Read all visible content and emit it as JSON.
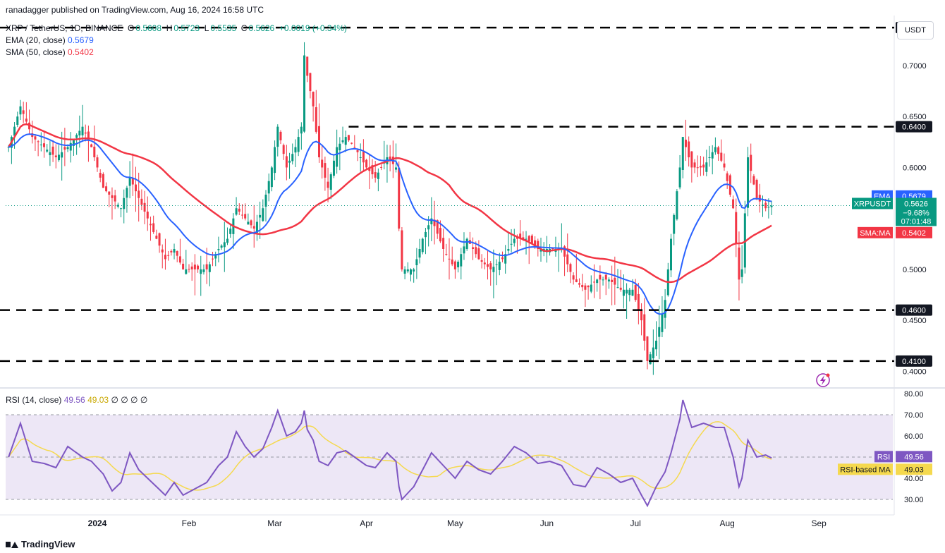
{
  "header": {
    "publisher": "ranadagger published on TradingView.com, Aug 16, 2024 16:58 UTC",
    "symbol": "XRP / TetherUS, 1D, BINANCE",
    "o_label": "O",
    "o_value": "0.5608",
    "h_label": "H",
    "h_value": "0.5723",
    "l_label": "L",
    "l_value": "0.5535",
    "c_label": "C",
    "c_value": "0.5626",
    "change": "+0.0019 (+0.34%)",
    "ema_label": "EMA (20, close)",
    "ema_value": "0.5679",
    "sma_label": "SMA (50, close)",
    "sma_value": "0.5402",
    "rsi_label": "RSI (14, close)",
    "rsi_value": "49.56",
    "rsi_ma_value": "49.03",
    "rsi_extra": "∅ ∅ ∅ ∅"
  },
  "currency_button": "USDT",
  "footer": {
    "brand": "TradingView",
    "logo_icon": "tradingview-logo-icon"
  },
  "colors": {
    "up": "#089981",
    "down": "#f23645",
    "ema": "#2962ff",
    "sma": "#f23645",
    "rsi": "#7e57c2",
    "rsi_ma": "#f5d94e",
    "rsi_band": "#ede7f6",
    "hline": "#000000"
  },
  "chart_data": [
    {
      "type": "candlestick",
      "x_ticks": [
        "2024",
        "Feb",
        "Mar",
        "Apr",
        "May",
        "Jun",
        "Jul",
        "Aug",
        "Sep"
      ],
      "y_ticks": [
        "0.7000",
        "0.6500",
        "0.6000",
        "0.5500",
        "0.5000",
        "0.4500",
        "0.4000"
      ],
      "ylim": [
        0.385,
        0.745
      ],
      "horizontal_levels": [
        {
          "value": 0.7373,
          "label": "0.7373"
        },
        {
          "value": 0.64,
          "label": "0.6400"
        },
        {
          "value": 0.46,
          "label": "0.4600"
        },
        {
          "value": 0.41,
          "label": "0.4100"
        }
      ],
      "price_tags": [
        {
          "name": "EMA",
          "value": "0.5679"
        },
        {
          "name": "XRPUSDT",
          "value": "0.5626",
          "change": "−9.68%",
          "countdown": "07:01:48"
        },
        {
          "name": "SMA:MA",
          "value": "0.5402"
        }
      ],
      "close_anchors": [
        {
          "x": "Dec 2",
          "y": 0.62
        },
        {
          "x": "Dec 6",
          "y": 0.66
        },
        {
          "x": "Dec 10",
          "y": 0.63
        },
        {
          "x": "Dec 14",
          "y": 0.62
        },
        {
          "x": "Dec 18",
          "y": 0.61
        },
        {
          "x": "Dec 22",
          "y": 0.62
        },
        {
          "x": "Dec 27",
          "y": 0.64
        },
        {
          "x": "Dec 30",
          "y": 0.62
        },
        {
          "x": "Jan 3",
          "y": 0.58
        },
        {
          "x": "Jan 6",
          "y": 0.57
        },
        {
          "x": "Jan 9",
          "y": 0.56
        },
        {
          "x": "Jan 12",
          "y": 0.59
        },
        {
          "x": "Jan 15",
          "y": 0.57
        },
        {
          "x": "Jan 18",
          "y": 0.55
        },
        {
          "x": "Jan 21",
          "y": 0.53
        },
        {
          "x": "Jan 24",
          "y": 0.51
        },
        {
          "x": "Jan 27",
          "y": 0.52
        },
        {
          "x": "Jan 30",
          "y": 0.5
        },
        {
          "x": "Feb 3",
          "y": 0.5
        },
        {
          "x": "Feb 7",
          "y": 0.5
        },
        {
          "x": "Feb 11",
          "y": 0.52
        },
        {
          "x": "Feb 14",
          "y": 0.53
        },
        {
          "x": "Feb 17",
          "y": 0.56
        },
        {
          "x": "Feb 20",
          "y": 0.55
        },
        {
          "x": "Feb 23",
          "y": 0.54
        },
        {
          "x": "Feb 26",
          "y": 0.56
        },
        {
          "x": "Feb 29",
          "y": 0.6
        },
        {
          "x": "Mar 2",
          "y": 0.64
        },
        {
          "x": "Mar 5",
          "y": 0.6
        },
        {
          "x": "Mar 8",
          "y": 0.62
        },
        {
          "x": "Mar 10",
          "y": 0.64
        },
        {
          "x": "Mar 11",
          "y": 0.71
        },
        {
          "x": "Mar 12",
          "y": 0.69
        },
        {
          "x": "Mar 14",
          "y": 0.66
        },
        {
          "x": "Mar 16",
          "y": 0.61
        },
        {
          "x": "Mar 19",
          "y": 0.58
        },
        {
          "x": "Mar 22",
          "y": 0.62
        },
        {
          "x": "Mar 25",
          "y": 0.63
        },
        {
          "x": "Mar 28",
          "y": 0.62
        },
        {
          "x": "Apr 1",
          "y": 0.6
        },
        {
          "x": "Apr 4",
          "y": 0.59
        },
        {
          "x": "Apr 8",
          "y": 0.61
        },
        {
          "x": "Apr 11",
          "y": 0.6
        },
        {
          "x": "Apr 12",
          "y": 0.54
        },
        {
          "x": "Apr 13",
          "y": 0.5
        },
        {
          "x": "Apr 17",
          "y": 0.5
        },
        {
          "x": "Apr 20",
          "y": 0.53
        },
        {
          "x": "Apr 23",
          "y": 0.55
        },
        {
          "x": "Apr 27",
          "y": 0.52
        },
        {
          "x": "May 1",
          "y": 0.5
        },
        {
          "x": "May 5",
          "y": 0.53
        },
        {
          "x": "May 9",
          "y": 0.51
        },
        {
          "x": "May 13",
          "y": 0.5
        },
        {
          "x": "May 17",
          "y": 0.51
        },
        {
          "x": "May 21",
          "y": 0.53
        },
        {
          "x": "May 25",
          "y": 0.53
        },
        {
          "x": "May 29",
          "y": 0.52
        },
        {
          "x": "Jun 2",
          "y": 0.52
        },
        {
          "x": "Jun 6",
          "y": 0.52
        },
        {
          "x": "Jun 10",
          "y": 0.49
        },
        {
          "x": "Jun 14",
          "y": 0.48
        },
        {
          "x": "Jun 18",
          "y": 0.49
        },
        {
          "x": "Jun 22",
          "y": 0.49
        },
        {
          "x": "Jun 26",
          "y": 0.48
        },
        {
          "x": "Jun 30",
          "y": 0.48
        },
        {
          "x": "Jul 3",
          "y": 0.45
        },
        {
          "x": "Jul 5",
          "y": 0.41
        },
        {
          "x": "Jul 8",
          "y": 0.43
        },
        {
          "x": "Jul 11",
          "y": 0.47
        },
        {
          "x": "Jul 13",
          "y": 0.53
        },
        {
          "x": "Jul 16",
          "y": 0.6
        },
        {
          "x": "Jul 17",
          "y": 0.63
        },
        {
          "x": "Jul 20",
          "y": 0.6
        },
        {
          "x": "Jul 24",
          "y": 0.6
        },
        {
          "x": "Jul 28",
          "y": 0.62
        },
        {
          "x": "Jul 31",
          "y": 0.6
        },
        {
          "x": "Aug 3",
          "y": 0.56
        },
        {
          "x": "Aug 5",
          "y": 0.49
        },
        {
          "x": "Aug 6",
          "y": 0.5
        },
        {
          "x": "Aug 8",
          "y": 0.61
        },
        {
          "x": "Aug 11",
          "y": 0.57
        },
        {
          "x": "Aug 14",
          "y": 0.56
        },
        {
          "x": "Aug 16",
          "y": 0.5626
        }
      ],
      "ema20": {
        "name": "EMA (20, close)",
        "last": 0.5679
      },
      "sma50": {
        "name": "SMA (50, close)",
        "last": 0.5402
      }
    },
    {
      "type": "line",
      "name": "RSI (14, close)",
      "y_ticks": [
        "80.00",
        "70.00",
        "60.00",
        "50.00",
        "40.00",
        "30.00"
      ],
      "ylim": [
        24,
        82
      ],
      "overbought": 70,
      "oversold": 30,
      "mid": 50,
      "rsi_anchors": [
        {
          "x": "Dec 2",
          "y": 50
        },
        {
          "x": "Dec 6",
          "y": 66
        },
        {
          "x": "Dec 10",
          "y": 48
        },
        {
          "x": "Dec 14",
          "y": 47
        },
        {
          "x": "Dec 18",
          "y": 45
        },
        {
          "x": "Dec 22",
          "y": 55
        },
        {
          "x": "Dec 27",
          "y": 50
        },
        {
          "x": "Dec 30",
          "y": 48
        },
        {
          "x": "Jan 3",
          "y": 42
        },
        {
          "x": "Jan 6",
          "y": 34
        },
        {
          "x": "Jan 9",
          "y": 38
        },
        {
          "x": "Jan 12",
          "y": 52
        },
        {
          "x": "Jan 15",
          "y": 44
        },
        {
          "x": "Jan 18",
          "y": 40
        },
        {
          "x": "Jan 21",
          "y": 36
        },
        {
          "x": "Jan 24",
          "y": 32
        },
        {
          "x": "Jan 27",
          "y": 38
        },
        {
          "x": "Jan 30",
          "y": 32
        },
        {
          "x": "Feb 3",
          "y": 35
        },
        {
          "x": "Feb 7",
          "y": 38
        },
        {
          "x": "Feb 11",
          "y": 46
        },
        {
          "x": "Feb 14",
          "y": 50
        },
        {
          "x": "Feb 17",
          "y": 62
        },
        {
          "x": "Feb 20",
          "y": 55
        },
        {
          "x": "Feb 23",
          "y": 50
        },
        {
          "x": "Feb 26",
          "y": 54
        },
        {
          "x": "Feb 29",
          "y": 64
        },
        {
          "x": "Mar 2",
          "y": 72
        },
        {
          "x": "Mar 5",
          "y": 60
        },
        {
          "x": "Mar 8",
          "y": 62
        },
        {
          "x": "Mar 10",
          "y": 66
        },
        {
          "x": "Mar 11",
          "y": 72
        },
        {
          "x": "Mar 12",
          "y": 63
        },
        {
          "x": "Mar 14",
          "y": 58
        },
        {
          "x": "Mar 16",
          "y": 48
        },
        {
          "x": "Mar 19",
          "y": 46
        },
        {
          "x": "Mar 22",
          "y": 52
        },
        {
          "x": "Mar 25",
          "y": 53
        },
        {
          "x": "Mar 28",
          "y": 50
        },
        {
          "x": "Apr 1",
          "y": 46
        },
        {
          "x": "Apr 4",
          "y": 45
        },
        {
          "x": "Apr 8",
          "y": 52
        },
        {
          "x": "Apr 11",
          "y": 48
        },
        {
          "x": "Apr 12",
          "y": 36
        },
        {
          "x": "Apr 13",
          "y": 30
        },
        {
          "x": "Apr 17",
          "y": 36
        },
        {
          "x": "Apr 20",
          "y": 44
        },
        {
          "x": "Apr 23",
          "y": 52
        },
        {
          "x": "Apr 27",
          "y": 46
        },
        {
          "x": "May 1",
          "y": 40
        },
        {
          "x": "May 5",
          "y": 48
        },
        {
          "x": "May 9",
          "y": 44
        },
        {
          "x": "May 13",
          "y": 42
        },
        {
          "x": "May 17",
          "y": 48
        },
        {
          "x": "May 21",
          "y": 55
        },
        {
          "x": "May 25",
          "y": 52
        },
        {
          "x": "May 29",
          "y": 47
        },
        {
          "x": "Jun 2",
          "y": 48
        },
        {
          "x": "Jun 6",
          "y": 46
        },
        {
          "x": "Jun 10",
          "y": 37
        },
        {
          "x": "Jun 14",
          "y": 36
        },
        {
          "x": "Jun 18",
          "y": 45
        },
        {
          "x": "Jun 22",
          "y": 42
        },
        {
          "x": "Jun 26",
          "y": 38
        },
        {
          "x": "Jun 30",
          "y": 40
        },
        {
          "x": "Jul 3",
          "y": 32
        },
        {
          "x": "Jul 5",
          "y": 27
        },
        {
          "x": "Jul 8",
          "y": 36
        },
        {
          "x": "Jul 11",
          "y": 43
        },
        {
          "x": "Jul 13",
          "y": 52
        },
        {
          "x": "Jul 16",
          "y": 68
        },
        {
          "x": "Jul 17",
          "y": 77
        },
        {
          "x": "Jul 20",
          "y": 64
        },
        {
          "x": "Jul 24",
          "y": 66
        },
        {
          "x": "Jul 28",
          "y": 64
        },
        {
          "x": "Jul 31",
          "y": 64
        },
        {
          "x": "Aug 3",
          "y": 50
        },
        {
          "x": "Aug 5",
          "y": 36
        },
        {
          "x": "Aug 6",
          "y": 40
        },
        {
          "x": "Aug 8",
          "y": 58
        },
        {
          "x": "Aug 11",
          "y": 50
        },
        {
          "x": "Aug 14",
          "y": 51
        },
        {
          "x": "Aug 16",
          "y": 49.56
        }
      ],
      "rsi_ma_last": 49.03,
      "tags": [
        {
          "name": "RSI",
          "value": "49.56"
        },
        {
          "name": "RSI-based MA",
          "value": "49.03"
        }
      ]
    }
  ]
}
